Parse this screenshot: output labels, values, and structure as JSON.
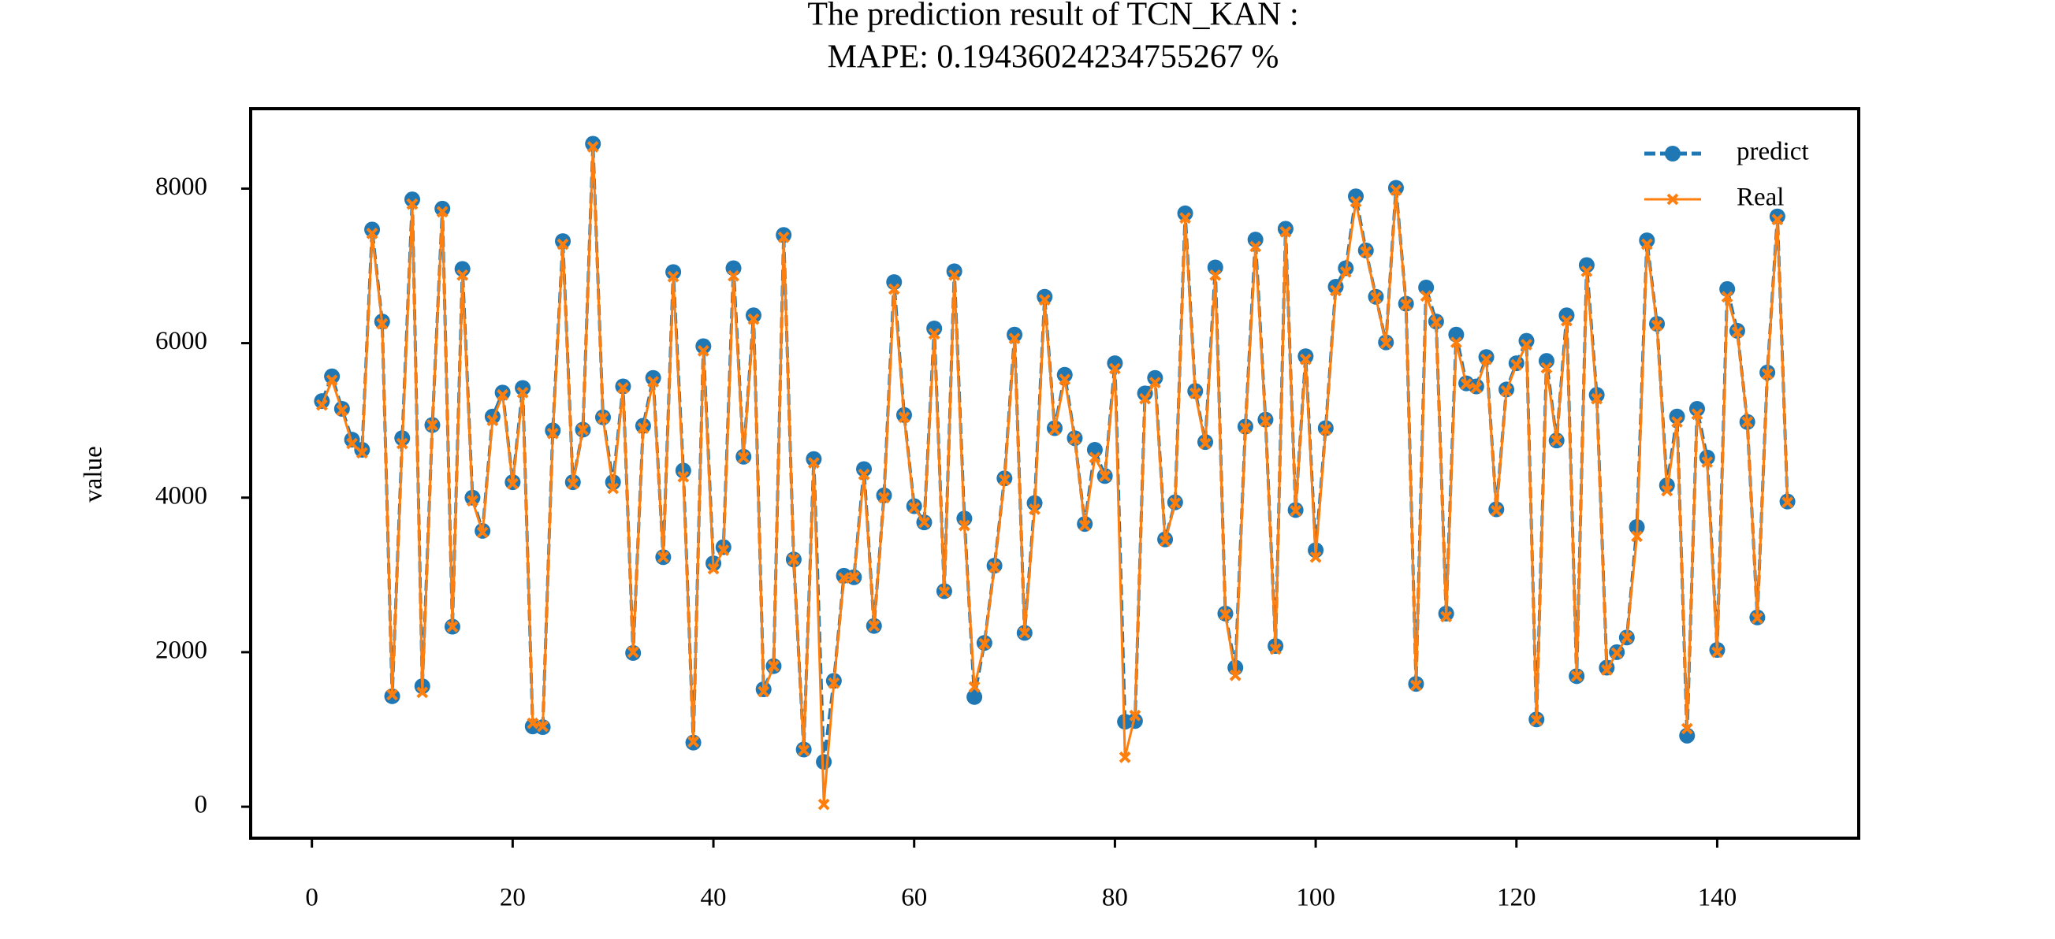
{
  "chart_data": {
    "type": "line",
    "title": "The prediction result of TCN_KAN :",
    "subtitle": "MAPE: 0.19436024234755267 %",
    "y_label": "value",
    "x": [
      1,
      2,
      3,
      4,
      5,
      6,
      7,
      8,
      9,
      10,
      11,
      12,
      13,
      14,
      15,
      16,
      17,
      18,
      19,
      20,
      21,
      22,
      23,
      24,
      25,
      26,
      27,
      28,
      29,
      30,
      31,
      32,
      33,
      34,
      35,
      36,
      37,
      38,
      39,
      40,
      41,
      42,
      43,
      44,
      45,
      46,
      47,
      48,
      49,
      50,
      51,
      52,
      53,
      54,
      55,
      56,
      57,
      58,
      59,
      60,
      61,
      62,
      63,
      64,
      65,
      66,
      67,
      68,
      69,
      70,
      71,
      72,
      73,
      74,
      75,
      76,
      77,
      78,
      79,
      80,
      81,
      82,
      83,
      84,
      85,
      86,
      87,
      88,
      89,
      90,
      91,
      92,
      93,
      94,
      95,
      96,
      97,
      98,
      99,
      100,
      101,
      102,
      103,
      104,
      105,
      106,
      107,
      108,
      109,
      110,
      111,
      112,
      113,
      114,
      115,
      116,
      117,
      118,
      119,
      120,
      121,
      122,
      123,
      124,
      125,
      126,
      127,
      128,
      129,
      130,
      131,
      132,
      133,
      134,
      135,
      136,
      137,
      138,
      139,
      140,
      141,
      142,
      143,
      144,
      145,
      146,
      147
    ],
    "series": [
      {
        "name": "predict",
        "color": "#1f77b4",
        "values": [
          5250,
          5570,
          5150,
          4750,
          4620,
          7470,
          6280,
          1430,
          4770,
          7860,
          1560,
          4940,
          7740,
          2330,
          6960,
          4000,
          3570,
          5050,
          5360,
          4200,
          5420,
          1040,
          1030,
          4870,
          7320,
          4200,
          4880,
          8580,
          5040,
          4200,
          5440,
          1990,
          4930,
          5550,
          3230,
          6920,
          4350,
          830,
          5960,
          3150,
          3360,
          6970,
          4530,
          6360,
          1520,
          1820,
          7400,
          3200,
          740,
          4500,
          580,
          1630,
          2990,
          2970,
          4370,
          2340,
          4030,
          6790,
          5070,
          3890,
          3680,
          6190,
          2790,
          6930,
          3730,
          1420,
          2120,
          3120,
          4250,
          6110,
          2250,
          3930,
          6600,
          4900,
          5590,
          4770,
          3660,
          4620,
          4280,
          5740,
          1100,
          1110,
          5350,
          5550,
          3460,
          3940,
          7680,
          5380,
          4720,
          6980,
          2500,
          1800,
          4920,
          7340,
          5010,
          2080,
          7480,
          3840,
          5830,
          3320,
          4900,
          6730,
          6970,
          7900,
          7200,
          6600,
          6010,
          8010,
          6510,
          1590,
          6720,
          6280,
          2500,
          6110,
          5480,
          5440,
          5820,
          3850,
          5400,
          5740,
          6030,
          1130,
          5770,
          4740,
          6360,
          1690,
          7010,
          5330,
          1800,
          2000,
          2190,
          3620,
          7330,
          6250,
          4160,
          5050,
          920,
          5150,
          4520,
          2030,
          6700,
          6160,
          4980,
          2450,
          5620,
          7640,
          3950
        ]
      },
      {
        "name": "Real",
        "color": "#ff7f0e",
        "values": [
          5200,
          5520,
          5130,
          4700,
          4580,
          7420,
          6250,
          1450,
          4700,
          7800,
          1480,
          4940,
          7700,
          2330,
          6880,
          3960,
          3550,
          5000,
          5330,
          4180,
          5360,
          1080,
          1040,
          4830,
          7280,
          4180,
          4880,
          8540,
          5030,
          4120,
          5420,
          2000,
          4900,
          5500,
          3230,
          6860,
          4270,
          840,
          5900,
          3080,
          3320,
          6870,
          4520,
          6310,
          1490,
          1820,
          7370,
          3200,
          730,
          4450,
          30,
          1600,
          2960,
          2970,
          4300,
          2340,
          4000,
          6700,
          5040,
          3870,
          3680,
          6120,
          2780,
          6880,
          3640,
          1550,
          2110,
          3100,
          4230,
          6060,
          2250,
          3850,
          6560,
          4880,
          5530,
          4760,
          3640,
          4520,
          4280,
          5670,
          640,
          1180,
          5280,
          5490,
          3440,
          3930,
          7620,
          5350,
          4700,
          6880,
          2490,
          1700,
          4900,
          7250,
          4990,
          2040,
          7440,
          3830,
          5790,
          3230,
          4880,
          6680,
          6920,
          7830,
          7180,
          6590,
          6000,
          7980,
          6500,
          1570,
          6610,
          6270,
          2460,
          6010,
          5470,
          5420,
          5790,
          3830,
          5380,
          5720,
          5980,
          1120,
          5680,
          4740,
          6290,
          1690,
          6930,
          5280,
          1770,
          1990,
          2190,
          3500,
          7280,
          6230,
          4090,
          4980,
          1010,
          5080,
          4460,
          2000,
          6600,
          6140,
          4980,
          2440,
          5600,
          7600,
          3940
        ]
      }
    ],
    "xlim": [
      -6.1,
      154.1
    ],
    "ylim": [
      -407,
      9034
    ],
    "xticks": [
      0,
      20,
      40,
      60,
      80,
      100,
      120,
      140
    ],
    "yticks": [
      0,
      2000,
      4000,
      6000,
      8000
    ],
    "legend": "upper right"
  }
}
